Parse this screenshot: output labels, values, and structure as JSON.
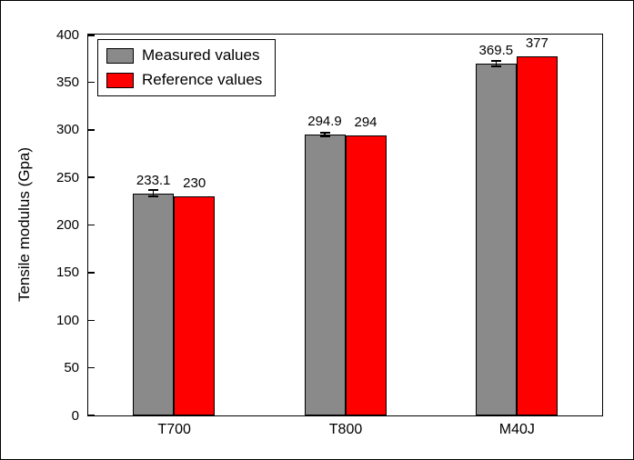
{
  "chart_data": {
    "type": "bar",
    "title": "",
    "categories": [
      "T700",
      "T800",
      "M40J"
    ],
    "series": [
      {
        "name": "Measured values",
        "color": "#8a8a8a",
        "values": [
          233.1,
          294.9,
          369.5
        ],
        "labels": [
          "233.1",
          "294.9",
          "369.5"
        ],
        "errors": [
          3.5,
          2,
          2.5
        ]
      },
      {
        "name": "Reference values",
        "color": "#ff0000",
        "values": [
          230,
          294,
          377
        ],
        "labels": [
          "230",
          "294",
          "377"
        ],
        "errors": null
      }
    ],
    "xlabel": "",
    "ylabel": "Tensile modulus (Gpa)",
    "ylim": [
      0,
      400
    ],
    "yticks": [
      0,
      50,
      100,
      150,
      200,
      250,
      300,
      350,
      400
    ],
    "grid": false,
    "legend_position": "top-left"
  }
}
